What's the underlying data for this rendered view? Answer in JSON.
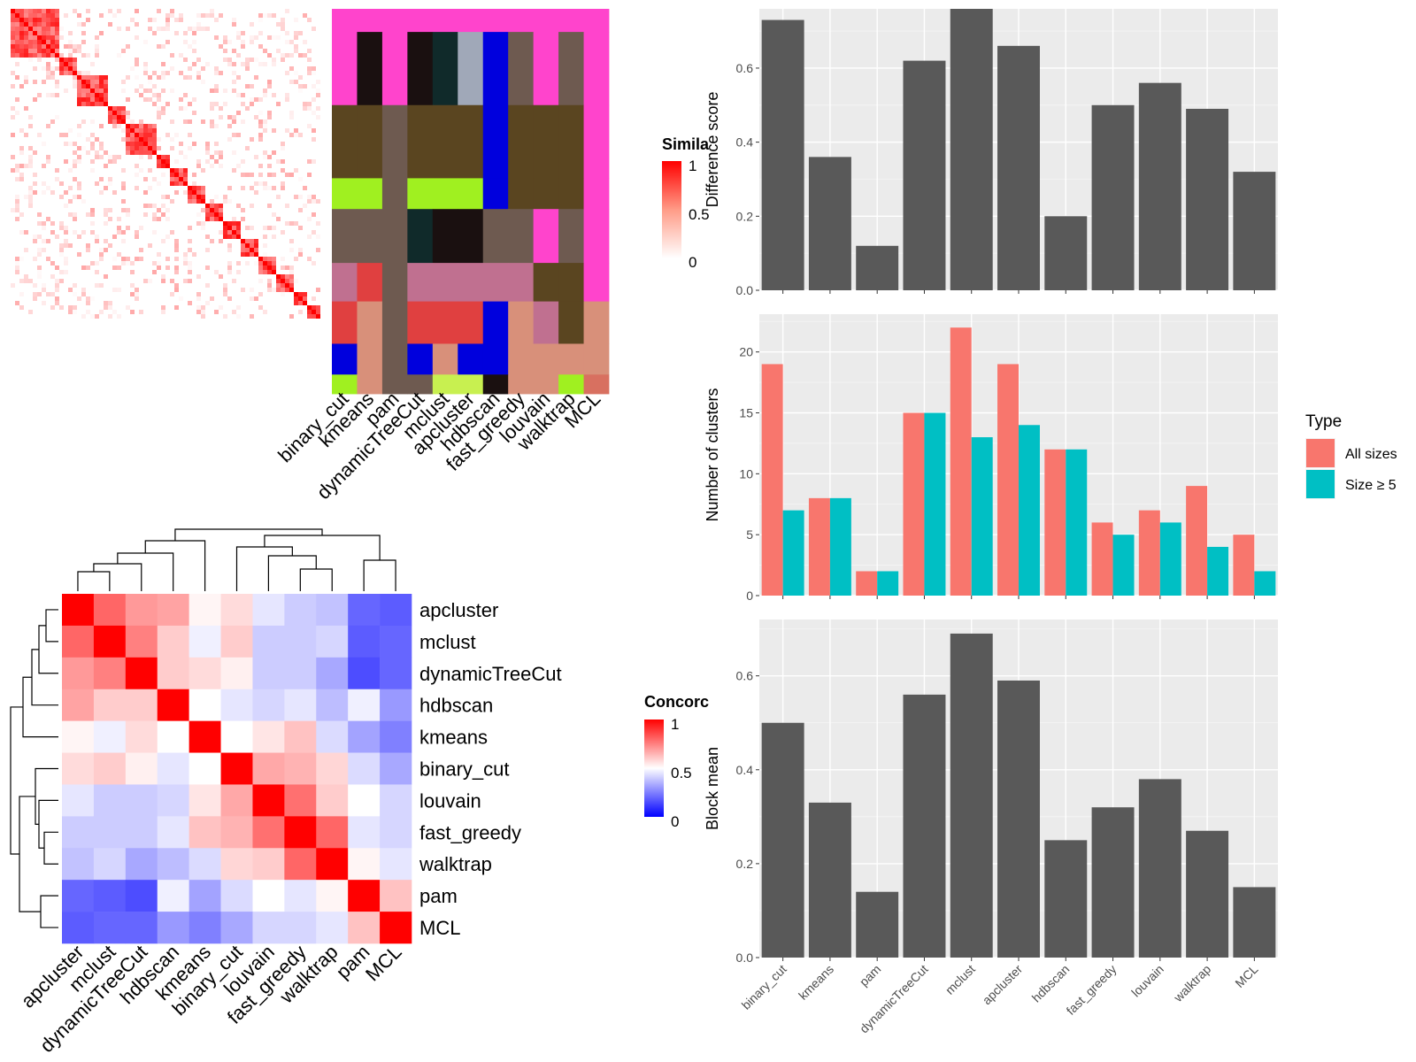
{
  "colors": {
    "panel_bg": "#ebebeb",
    "grid_major": "#ffffff",
    "bar": "#595959",
    "all_sizes": "#f8766d",
    "size_ge5": "#00bfc4",
    "heat_high": "#ff0000",
    "heat_low_blue": "#0000ff",
    "magenta": "#ff44cc",
    "brown": "#5a4520",
    "lime": "#a0f020"
  },
  "similarity_legend": {
    "title": "Simila",
    "ticks": [
      "1",
      "0.5",
      "0"
    ]
  },
  "concordance_legend": {
    "title": "Concorc",
    "ticks": [
      "1",
      "0.5",
      "0"
    ]
  },
  "methods_top": [
    "binary_cut",
    "kmeans",
    "pam",
    "dynamicTreeCut",
    "mclust",
    "apcluster",
    "hdbscan",
    "fast_greedy",
    "louvain",
    "walktrap",
    "MCL"
  ],
  "chart_data": [
    {
      "type": "heatmap",
      "name": "similarity-matrix",
      "legend_title": "Simila",
      "scale": [
        0,
        1
      ]
    },
    {
      "type": "heatmap",
      "name": "cluster-assignments",
      "columns": [
        "binary_cut",
        "kmeans",
        "pam",
        "dynamicTreeCut",
        "mclust",
        "apcluster",
        "hdbscan",
        "fast_greedy",
        "louvain",
        "walktrap",
        "MCL"
      ]
    },
    {
      "type": "heatmap",
      "name": "concordance",
      "legend_title": "Concorc",
      "scale": [
        0,
        1
      ],
      "labels": [
        "apcluster",
        "mclust",
        "dynamicTreeCut",
        "hdbscan",
        "kmeans",
        "binary_cut",
        "louvain",
        "fast_greedy",
        "walktrap",
        "pam",
        "MCL"
      ],
      "values": [
        [
          1.0,
          0.8,
          0.7,
          0.68,
          0.52,
          0.57,
          0.45,
          0.4,
          0.38,
          0.2,
          0.18
        ],
        [
          0.8,
          1.0,
          0.75,
          0.6,
          0.47,
          0.6,
          0.4,
          0.4,
          0.42,
          0.18,
          0.2
        ],
        [
          0.7,
          0.75,
          1.0,
          0.6,
          0.57,
          0.53,
          0.4,
          0.4,
          0.33,
          0.15,
          0.2
        ],
        [
          0.68,
          0.6,
          0.6,
          1.0,
          0.5,
          0.45,
          0.42,
          0.45,
          0.37,
          0.47,
          0.3
        ],
        [
          0.52,
          0.47,
          0.57,
          0.5,
          1.0,
          0.5,
          0.55,
          0.62,
          0.43,
          0.32,
          0.25
        ],
        [
          0.57,
          0.6,
          0.53,
          0.45,
          0.5,
          1.0,
          0.67,
          0.65,
          0.58,
          0.43,
          0.33
        ],
        [
          0.45,
          0.4,
          0.4,
          0.42,
          0.55,
          0.67,
          1.0,
          0.78,
          0.6,
          0.5,
          0.42
        ],
        [
          0.4,
          0.4,
          0.4,
          0.45,
          0.62,
          0.65,
          0.78,
          1.0,
          0.8,
          0.45,
          0.42
        ],
        [
          0.38,
          0.42,
          0.33,
          0.37,
          0.43,
          0.58,
          0.6,
          0.8,
          1.0,
          0.52,
          0.45
        ],
        [
          0.2,
          0.18,
          0.15,
          0.47,
          0.32,
          0.43,
          0.5,
          0.45,
          0.52,
          1.0,
          0.62
        ],
        [
          0.18,
          0.2,
          0.2,
          0.3,
          0.25,
          0.33,
          0.42,
          0.42,
          0.45,
          0.62,
          1.0
        ]
      ]
    },
    {
      "type": "bar",
      "name": "difference-score",
      "categories": [
        "binary_cut",
        "kmeans",
        "pam",
        "dynamicTreeCut",
        "mclust",
        "apcluster",
        "hdbscan",
        "fast_greedy",
        "louvain",
        "walktrap",
        "MCL"
      ],
      "values": [
        0.73,
        0.36,
        0.12,
        0.62,
        0.76,
        0.66,
        0.2,
        0.5,
        0.56,
        0.49,
        0.32
      ],
      "ylabel": "Difference score",
      "ylim": [
        0,
        0.76
      ],
      "yticks": [
        0,
        0.2,
        0.4,
        0.6
      ],
      "ytick_labels": [
        "0.0",
        "0.2",
        "0.4",
        "0.6"
      ],
      "grid": true
    },
    {
      "type": "bar",
      "name": "number-of-clusters",
      "categories": [
        "binary_cut",
        "kmeans",
        "pam",
        "dynamicTreeCut",
        "mclust",
        "apcluster",
        "hdbscan",
        "fast_greedy",
        "louvain",
        "walktrap",
        "MCL"
      ],
      "series": [
        {
          "name": "All sizes",
          "values": [
            19,
            8,
            2,
            15,
            22,
            19,
            12,
            6,
            7,
            9,
            5
          ]
        },
        {
          "name": "Size ≥ 5",
          "values": [
            7,
            8,
            2,
            15,
            13,
            14,
            12,
            5,
            6,
            4,
            2
          ]
        }
      ],
      "ylabel": "Number of clusters",
      "ylim": [
        0,
        23.1
      ],
      "yticks": [
        0,
        5,
        10,
        15,
        20
      ],
      "ytick_labels": [
        "0",
        "5",
        "10",
        "15",
        "20"
      ],
      "legend_title": "Type",
      "legend_position": "right",
      "grid": true
    },
    {
      "type": "bar",
      "name": "block-mean",
      "categories": [
        "binary_cut",
        "kmeans",
        "pam",
        "dynamicTreeCut",
        "mclust",
        "apcluster",
        "hdbscan",
        "fast_greedy",
        "louvain",
        "walktrap",
        "MCL"
      ],
      "values": [
        0.5,
        0.33,
        0.14,
        0.56,
        0.69,
        0.59,
        0.25,
        0.32,
        0.38,
        0.27,
        0.15
      ],
      "ylabel": "Block mean",
      "ylim": [
        0,
        0.72
      ],
      "yticks": [
        0,
        0.2,
        0.4,
        0.6
      ],
      "ytick_labels": [
        "0.0",
        "0.2",
        "0.4",
        "0.6"
      ],
      "grid": true
    }
  ]
}
